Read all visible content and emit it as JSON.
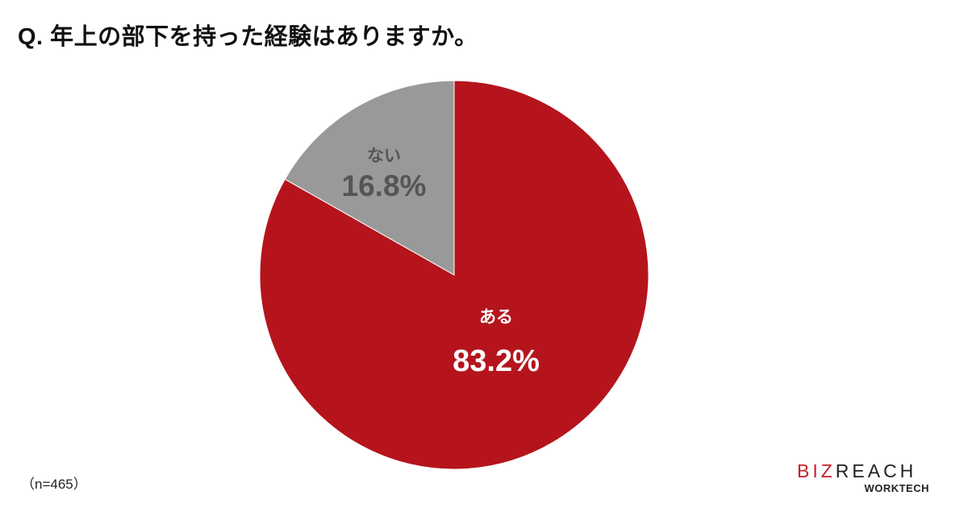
{
  "chart_data": {
    "type": "pie",
    "title": "Q. 年上の部下を持った経験はありますか。",
    "slices": [
      {
        "label": "ある",
        "value": 83.2,
        "display": "83.2%",
        "color": "#B5141C",
        "label_color": "#ffffff"
      },
      {
        "label": "ない",
        "value": 16.8,
        "display": "16.8%",
        "color": "#999999",
        "label_color": "#555555"
      }
    ],
    "start_angle": "12 o'clock",
    "direction": "clockwise",
    "note": "（n=465）"
  },
  "logo": {
    "brand_part1": "BIZ",
    "brand_part2": "REACH",
    "sub": "WORKTECH"
  }
}
